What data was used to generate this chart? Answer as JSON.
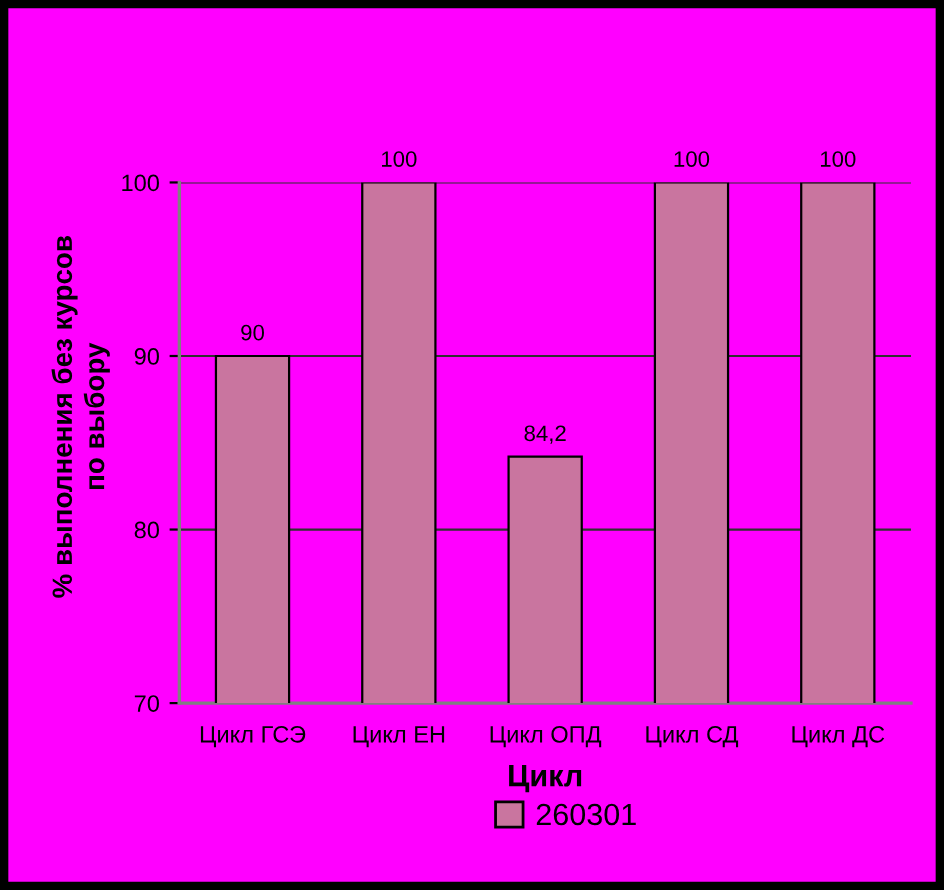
{
  "chart_data": {
    "type": "bar",
    "categories": [
      "Цикл ГСЭ",
      "Цикл ЕН",
      "Цикл ОПД",
      "Цикл СД",
      "Цикл ДС"
    ],
    "series": [
      {
        "name": "260301",
        "color": "#c9759f",
        "values": [
          90,
          100,
          84.2,
          100,
          100
        ],
        "value_labels": [
          "90",
          "100",
          "84,2",
          "100",
          "100"
        ]
      }
    ],
    "xlabel": "Цикл",
    "ylabel": "% выполнения без курсов\nпо выбору",
    "ylim": [
      70,
      100
    ],
    "yticks": [
      70,
      80,
      90,
      100
    ],
    "grid": "y",
    "legend": "bottom"
  }
}
